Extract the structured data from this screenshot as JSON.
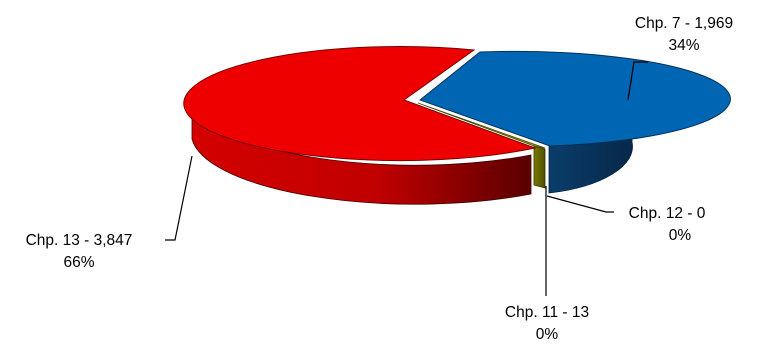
{
  "chart_data": {
    "type": "pie",
    "title": "",
    "categories": [
      "Chp. 7",
      "Chp. 11",
      "Chp. 12",
      "Chp. 13"
    ],
    "values": [
      1969,
      13,
      0,
      3847
    ],
    "value_labels": [
      "1,969",
      "13",
      "0",
      "3,847"
    ],
    "percent_labels": [
      "34%",
      "0%",
      "0%",
      "66%"
    ],
    "labels": [
      {
        "line1": "Chp. 7 - 1,969",
        "line2": "34%"
      },
      {
        "line1": "Chp. 11 - 13",
        "line2": "0%"
      },
      {
        "line1": "Chp. 12 - 0",
        "line2": "0%"
      },
      {
        "line1": "Chp. 13 - 3,847",
        "line2": "66%"
      }
    ],
    "colors": [
      "#0066b3",
      "#6b6b00",
      "#1a6d1a",
      "#e80000"
    ],
    "style": "3d-exploded",
    "legend": "none"
  }
}
